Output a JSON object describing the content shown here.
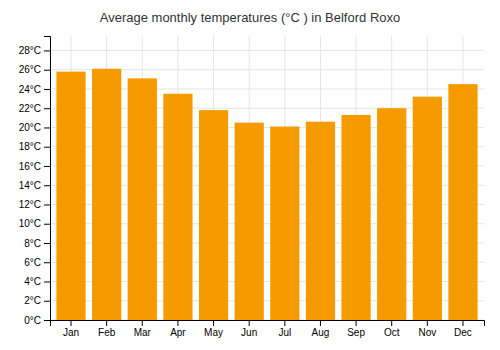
{
  "chart_data": {
    "type": "bar",
    "title": "Average monthly temperatures (°C ) in Belford Roxo",
    "categories": [
      "Jan",
      "Feb",
      "Mar",
      "Apr",
      "May",
      "Jun",
      "Jul",
      "Aug",
      "Sep",
      "Oct",
      "Nov",
      "Dec"
    ],
    "values": [
      25.8,
      26.1,
      25.1,
      23.5,
      21.8,
      20.5,
      20.1,
      20.6,
      21.3,
      22.0,
      23.2,
      24.5
    ],
    "color": "#F59B00",
    "ylim": [
      0,
      29.5
    ],
    "yticks": [
      {
        "value": 0,
        "label": "0°C"
      },
      {
        "value": 2,
        "label": "2°C"
      },
      {
        "value": 4,
        "label": "4°C"
      },
      {
        "value": 6,
        "label": "6°C"
      },
      {
        "value": 8,
        "label": "8°C"
      },
      {
        "value": 10,
        "label": "10°C"
      },
      {
        "value": 12,
        "label": "12°C"
      },
      {
        "value": 14,
        "label": "14°C"
      },
      {
        "value": 16,
        "label": "16°C"
      },
      {
        "value": 18,
        "label": "18°C"
      },
      {
        "value": 20,
        "label": "20°C"
      },
      {
        "value": 22,
        "label": "22°C"
      },
      {
        "value": 24,
        "label": "24°C"
      },
      {
        "value": 26,
        "label": "26°C"
      },
      {
        "value": 28,
        "label": "28°C"
      }
    ],
    "grid": true
  }
}
